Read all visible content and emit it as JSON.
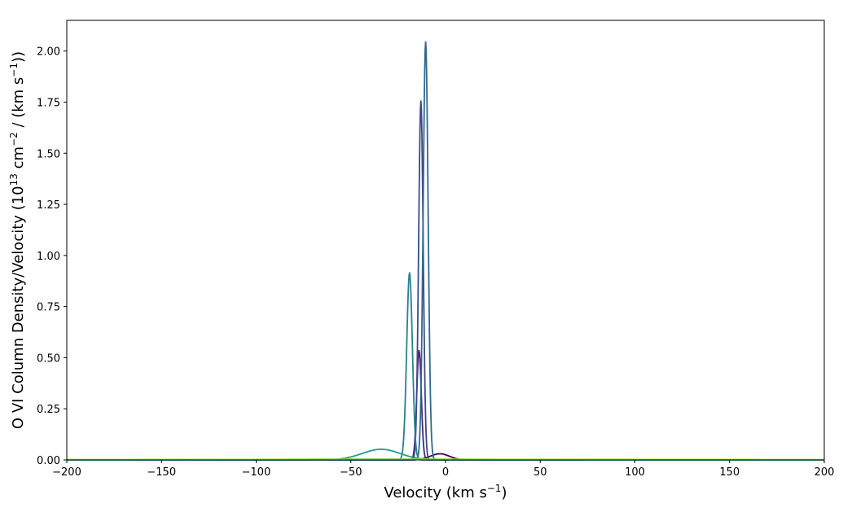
{
  "chart_data": {
    "type": "line",
    "title": "",
    "xlabel": {
      "parts": [
        {
          "text": "Velocity (km s",
          "sup": false
        },
        {
          "text": "−1",
          "sup": true
        },
        {
          "text": ")",
          "sup": false
        }
      ]
    },
    "ylabel": {
      "parts": [
        {
          "text": "O VI Column Density/Velocity (10",
          "sup": false
        },
        {
          "text": "13",
          "sup": true
        },
        {
          "text": " cm",
          "sup": false
        },
        {
          "text": "−2",
          "sup": true
        },
        {
          "text": " / (km s",
          "sup": false
        },
        {
          "text": "−1",
          "sup": true
        },
        {
          "text": "))",
          "sup": false
        }
      ]
    },
    "xlim": [
      -200,
      200
    ],
    "ylim": [
      0,
      2.15
    ],
    "xticks": [
      -200,
      -150,
      -100,
      -50,
      0,
      50,
      100,
      150,
      200
    ],
    "xtick_labels": [
      "−200",
      "−150",
      "−100",
      "−50",
      "0",
      "50",
      "100",
      "150",
      "200"
    ],
    "yticks": [
      0,
      0.25,
      0.5,
      0.75,
      1.0,
      1.25,
      1.5,
      1.75,
      2.0
    ],
    "ytick_labels": [
      "0.00",
      "0.25",
      "0.50",
      "0.75",
      "1.00",
      "1.25",
      "1.50",
      "1.75",
      "2.00"
    ],
    "grid": false,
    "legend": "none",
    "components": [
      {
        "color": "#440154",
        "center": -3,
        "amplitude": 0.03,
        "sigma": 5
      },
      {
        "color": "#482878",
        "center": -14,
        "amplitude": 0.535,
        "sigma": 1.2
      },
      {
        "color": "#3e4989",
        "center": -13,
        "amplitude": 1.755,
        "sigma": 1.2
      },
      {
        "color": "#31688e",
        "center": -10.5,
        "amplitude": 2.045,
        "sigma": 1.3
      },
      {
        "color": "#26828e",
        "center": -19,
        "amplitude": 0.915,
        "sigma": 1.5
      },
      {
        "color": "#1f9e89",
        "center": -34,
        "amplitude": 0.052,
        "sigma": 10
      },
      {
        "color": "#35b779",
        "center": -30,
        "amplitude": 0.004,
        "sigma": 60
      },
      {
        "color": "#b5de2b",
        "center": 0,
        "amplitude": 0.003,
        "sigma": 200
      }
    ]
  }
}
